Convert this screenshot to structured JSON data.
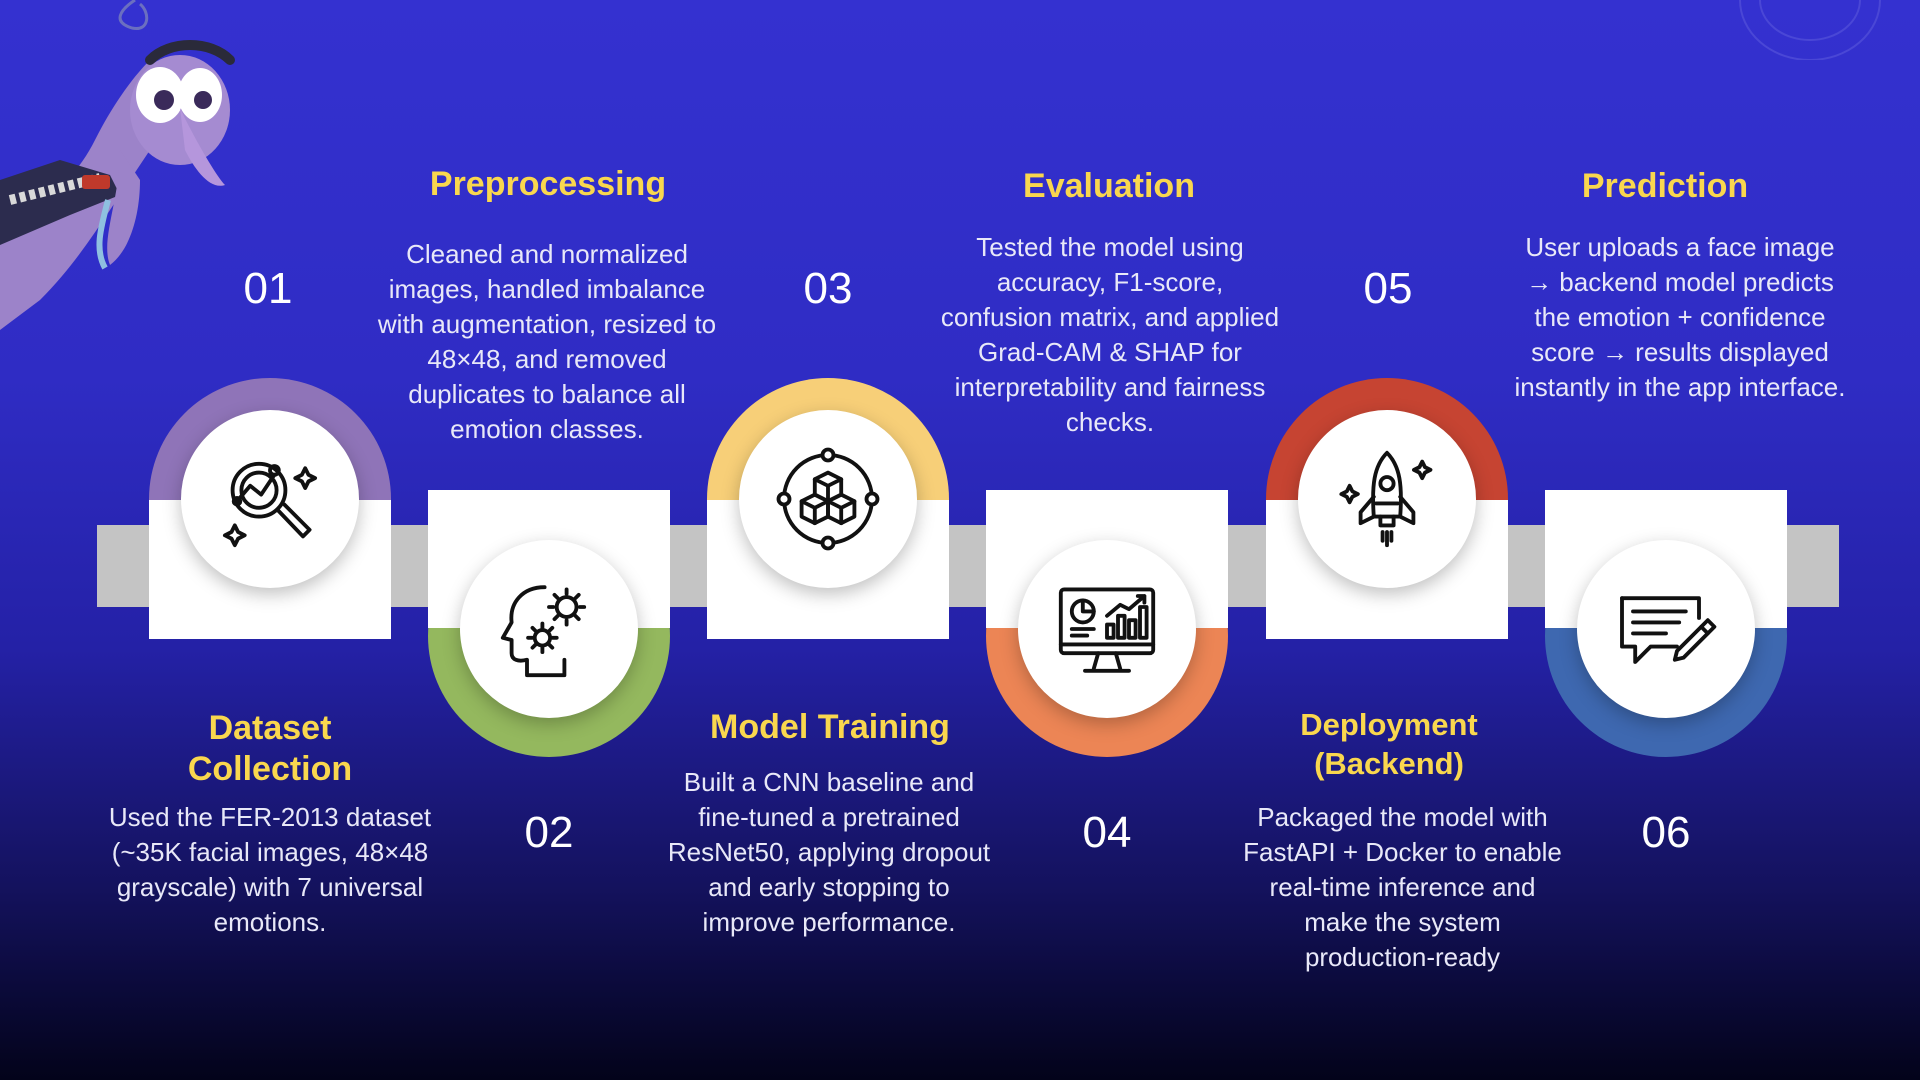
{
  "steps": [
    {
      "num": "01",
      "title": "Dataset Collection",
      "title_lines": [
        "Dataset",
        "Collection"
      ],
      "desc": "Used the FER-2013 dataset (~35K facial images, 48×48 grayscale) with 7 universal emotions.",
      "icon": "magnifier-chart-icon",
      "color": "#8f74b8"
    },
    {
      "num": "02",
      "title": "Preprocessing",
      "title_lines": [
        "Preprocessing"
      ],
      "desc": "Cleaned and normalized images, handled imbalance with augmentation, resized to 48×48, and removed duplicates to balance all emotion classes.",
      "icon": "head-gears-icon",
      "color": "#94b85e"
    },
    {
      "num": "03",
      "title": "Model Training",
      "title_lines": [
        "Model Training"
      ],
      "desc": "Built a CNN baseline and fine-tuned a pretrained ResNet50, applying dropout and early stopping to improve performance.",
      "icon": "cubes-network-icon",
      "color": "#f7cf78"
    },
    {
      "num": "04",
      "title": "Evaluation",
      "title_lines": [
        "Evaluation"
      ],
      "desc": "Tested the model using accuracy, F1-score, confusion matrix, and applied Grad-CAM & SHAP for interpretability and fairness checks.",
      "icon": "monitor-analytics-icon",
      "color": "#ec8555"
    },
    {
      "num": "05",
      "title": "Deployment (Backend)",
      "title_lines": [
        "Deployment",
        "(Backend)"
      ],
      "desc": "Packaged the model with FastAPI + Docker to enable real-time inference and make the system production-ready",
      "icon": "rocket-icon",
      "color": "#c64432"
    },
    {
      "num": "06",
      "title": "Prediction",
      "title_lines": [
        "Prediction"
      ],
      "desc": "User uploads a face image → backend model predicts the emotion + confidence score → results displayed instantly in the app interface.",
      "icon": "chat-edit-icon",
      "color": "#3e68b0"
    }
  ],
  "colors": {
    "title": "#f9d74e",
    "track": "#c4c4c4"
  }
}
